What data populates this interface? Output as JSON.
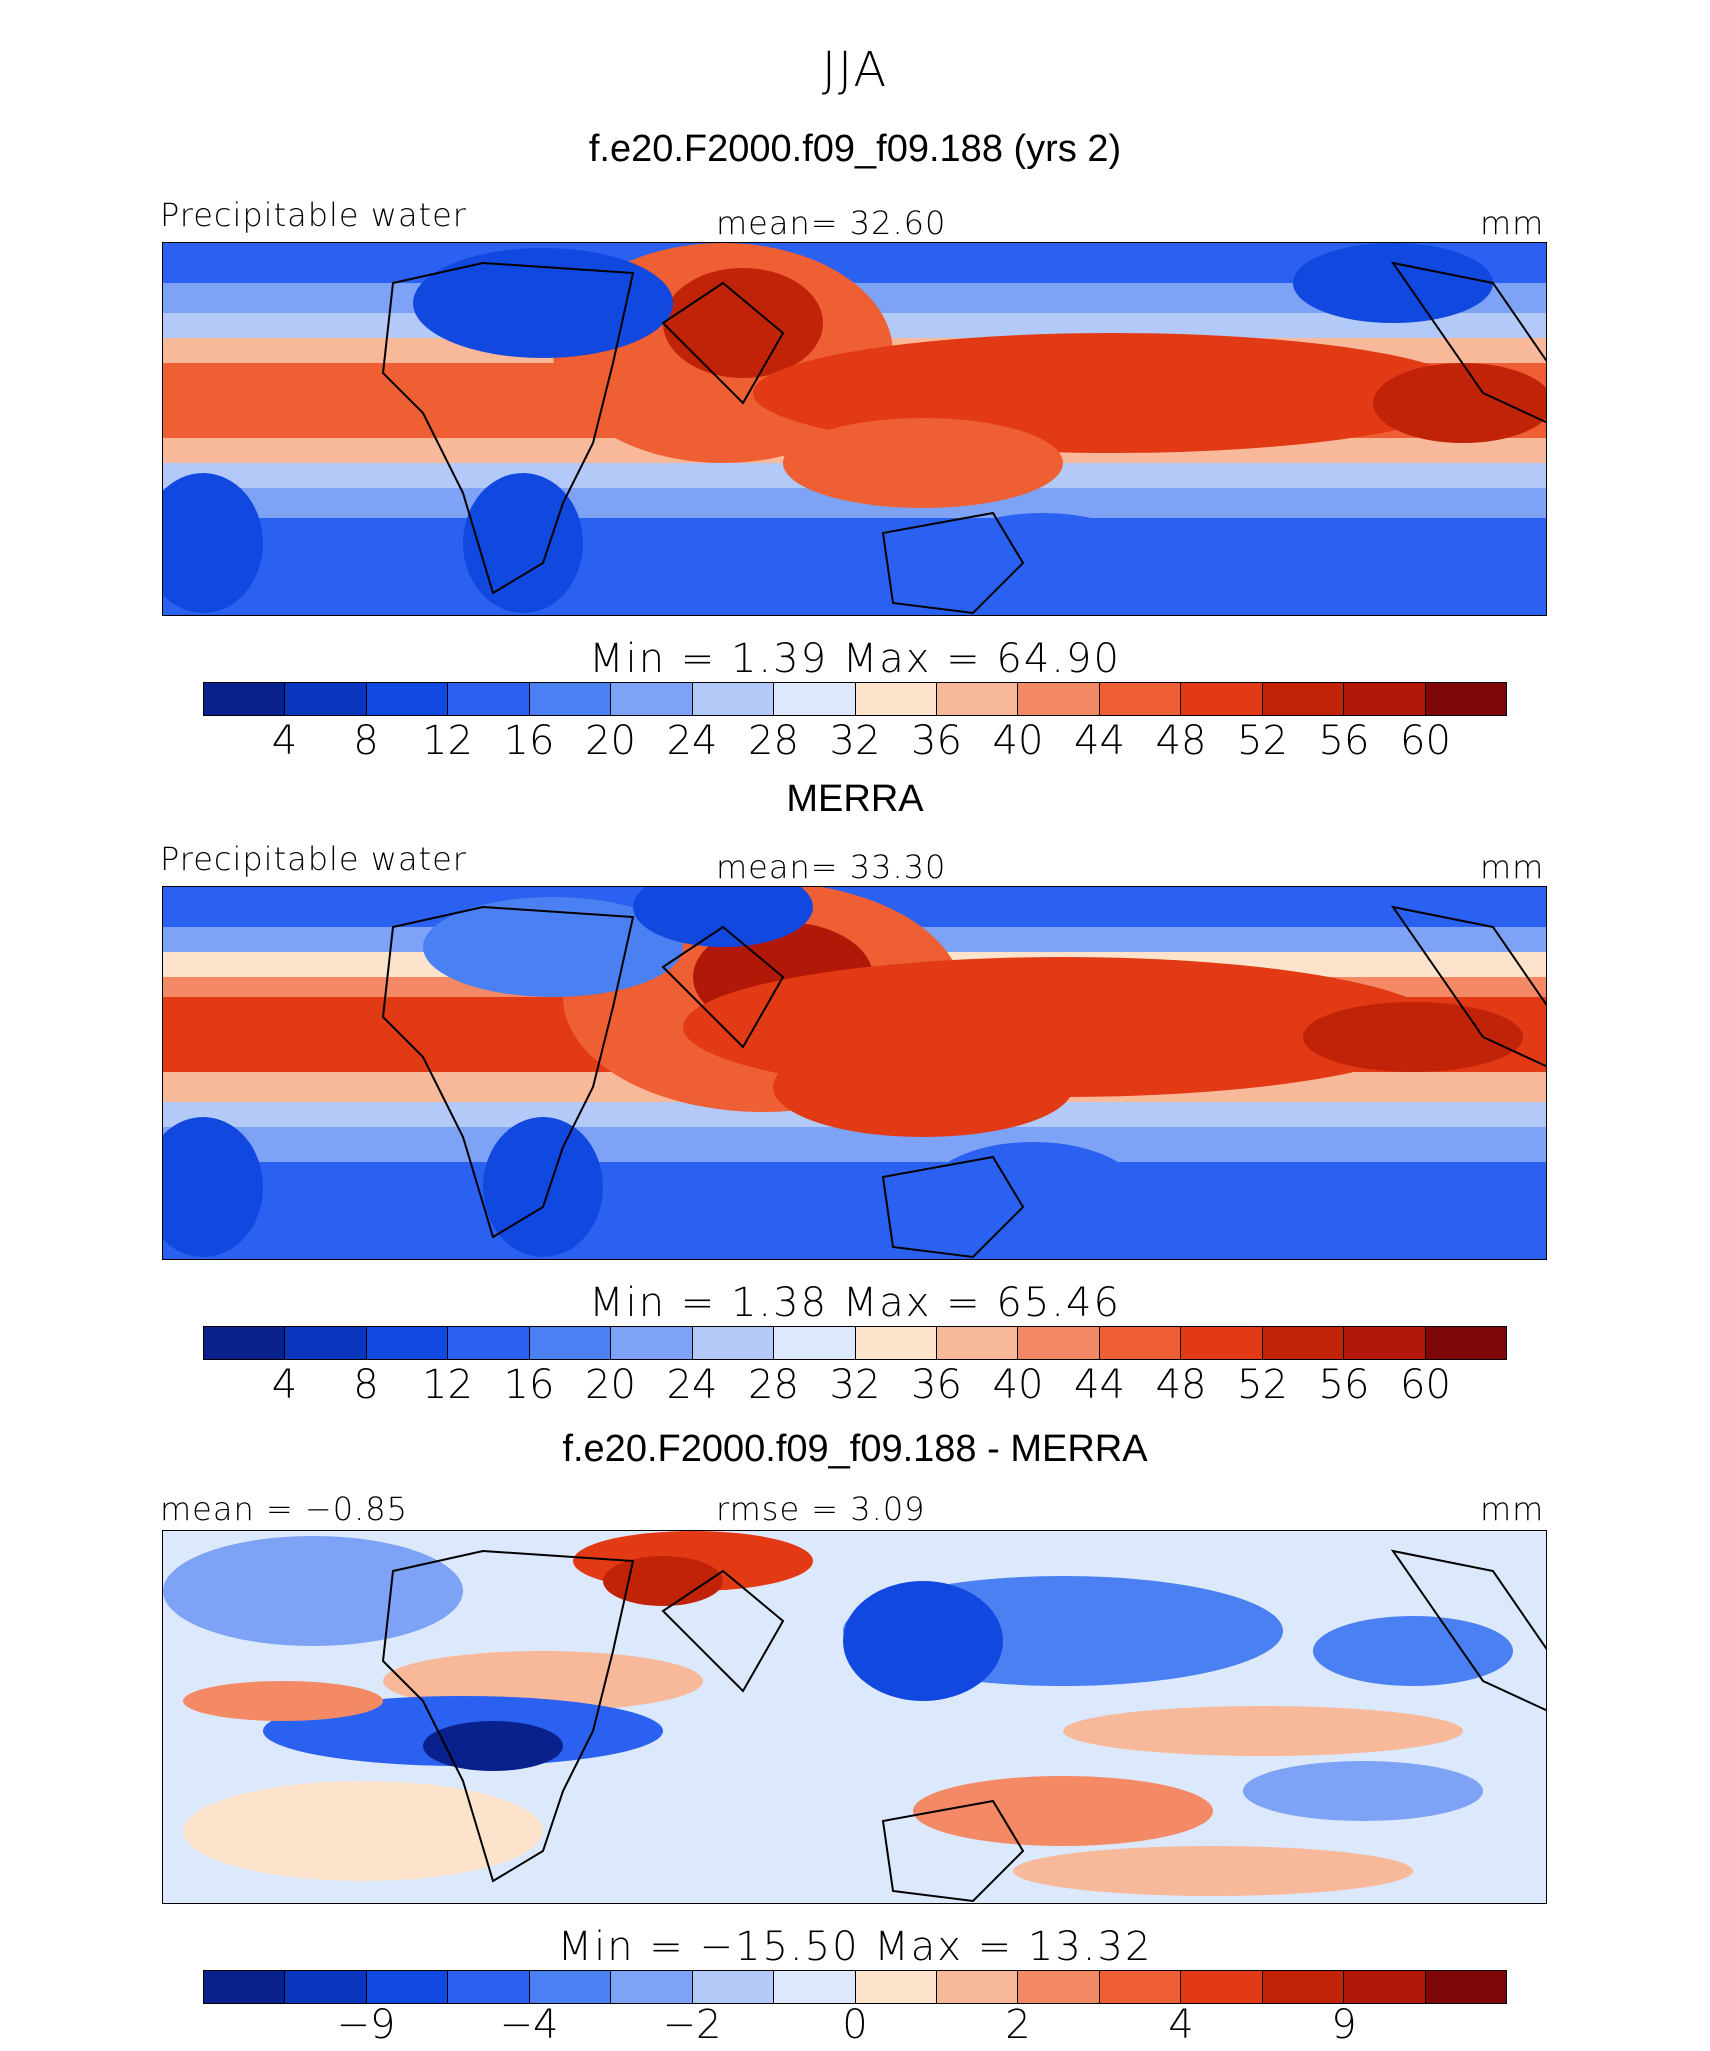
{
  "figure": {
    "season": "JJA"
  },
  "colors": {
    "abs_scale": [
      "#08218c",
      "#0a36bd",
      "#1148e0",
      "#2a61f0",
      "#4b80f2",
      "#7ea2f5",
      "#b3c9f8",
      "#dce8fb",
      "#fde3cc",
      "#f8b89a",
      "#f48966",
      "#ee5f33",
      "#e23a14",
      "#c12308",
      "#b21807",
      "#7f0707"
    ],
    "diff_scale": [
      "#08218c",
      "#0a36bd",
      "#1148e0",
      "#2a61f0",
      "#4b80f2",
      "#7ea2f5",
      "#b3c9f8",
      "#dce8fb",
      "#fde3cc",
      "#f8b89a",
      "#f48966",
      "#ee5f33",
      "#e23a14",
      "#c12308",
      "#b21807",
      "#7f0707"
    ]
  },
  "panels": [
    {
      "title": "f.e20.F2000.f09_f09.188 (yrs 2)",
      "left_label": "Precipitable water",
      "center_label": "mean=   32.60",
      "units": "mm",
      "minmax": "Min  =      1.39  Max  =    64.90",
      "ticks": [
        "4",
        "8",
        "12",
        "16",
        "20",
        "24",
        "28",
        "32",
        "36",
        "40",
        "44",
        "48",
        "52",
        "56",
        "60"
      ]
    },
    {
      "title": "MERRA",
      "left_label": "Precipitable water",
      "center_label": "mean=   33.30",
      "units": "mm",
      "minmax": "Min  =      1.38  Max  =    65.46",
      "ticks": [
        "4",
        "8",
        "12",
        "16",
        "20",
        "24",
        "28",
        "32",
        "36",
        "40",
        "44",
        "48",
        "52",
        "56",
        "60"
      ]
    },
    {
      "title": "f.e20.F2000.f09_f09.188 - MERRA",
      "left_label": "mean  =   −0.85",
      "center_label": "rmse  =     3.09",
      "units": "mm",
      "minmax": "Min  =  −15.50  Max  =    13.32",
      "ticks": [
        "−9",
        "",
        "−4",
        "",
        "−2",
        "",
        "0",
        "",
        "2",
        "",
        "4",
        "",
        "9",
        "",
        ""
      ]
    }
  ]
}
